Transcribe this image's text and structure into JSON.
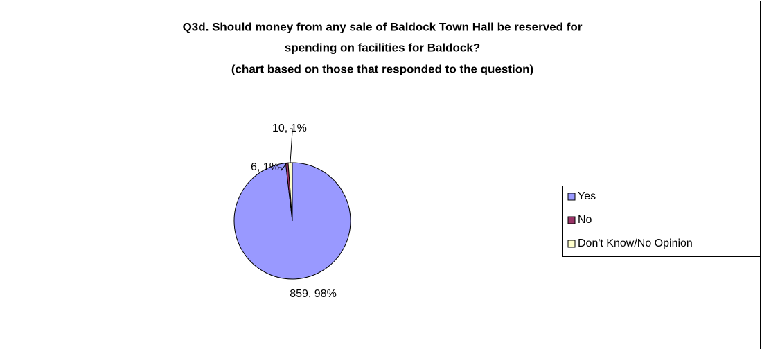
{
  "chart_data": {
    "type": "pie",
    "title": [
      "Q3d. Should money from any sale of Baldock Town Hall be reserved for",
      "spending on facilities for Baldock?"
    ],
    "subtitle": "(chart based on those that responded to the question)",
    "categories": [
      "Yes",
      "No",
      "Don't Know/No Opinion"
    ],
    "values": [
      859,
      6,
      10
    ],
    "value_labels": [
      "859, 98%",
      "6, 1%",
      "10, 1%"
    ],
    "colors": [
      "#9999ff",
      "#993366",
      "#ffffcc"
    ],
    "legend": "right"
  }
}
